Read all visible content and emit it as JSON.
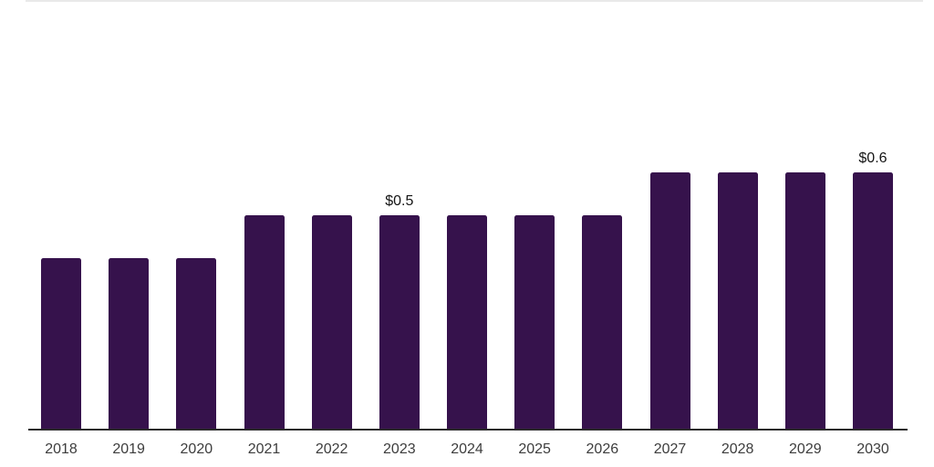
{
  "page": {
    "background": "#ffffff",
    "top_rule_color": "#e9e9e9"
  },
  "chart_data": {
    "type": "bar",
    "title": "",
    "xlabel": "",
    "ylabel": "",
    "categories": [
      "2018",
      "2019",
      "2020",
      "2021",
      "2022",
      "2023",
      "2024",
      "2025",
      "2026",
      "2027",
      "2028",
      "2029",
      "2030"
    ],
    "values": [
      0.4,
      0.4,
      0.4,
      0.5,
      0.5,
      0.5,
      0.5,
      0.5,
      0.5,
      0.6,
      0.6,
      0.6,
      0.6
    ],
    "data_labels": [
      {
        "category": "2023",
        "text": "$0.5"
      },
      {
        "category": "2030",
        "text": "$0.6"
      }
    ],
    "ylim": [
      0,
      0.65
    ],
    "grid": false,
    "legend": "none",
    "bar_color": "#36124c",
    "axis_line_color": "#2b2b2b",
    "tick_label_color": "#3d3d3d",
    "value_label_color": "#141414"
  }
}
